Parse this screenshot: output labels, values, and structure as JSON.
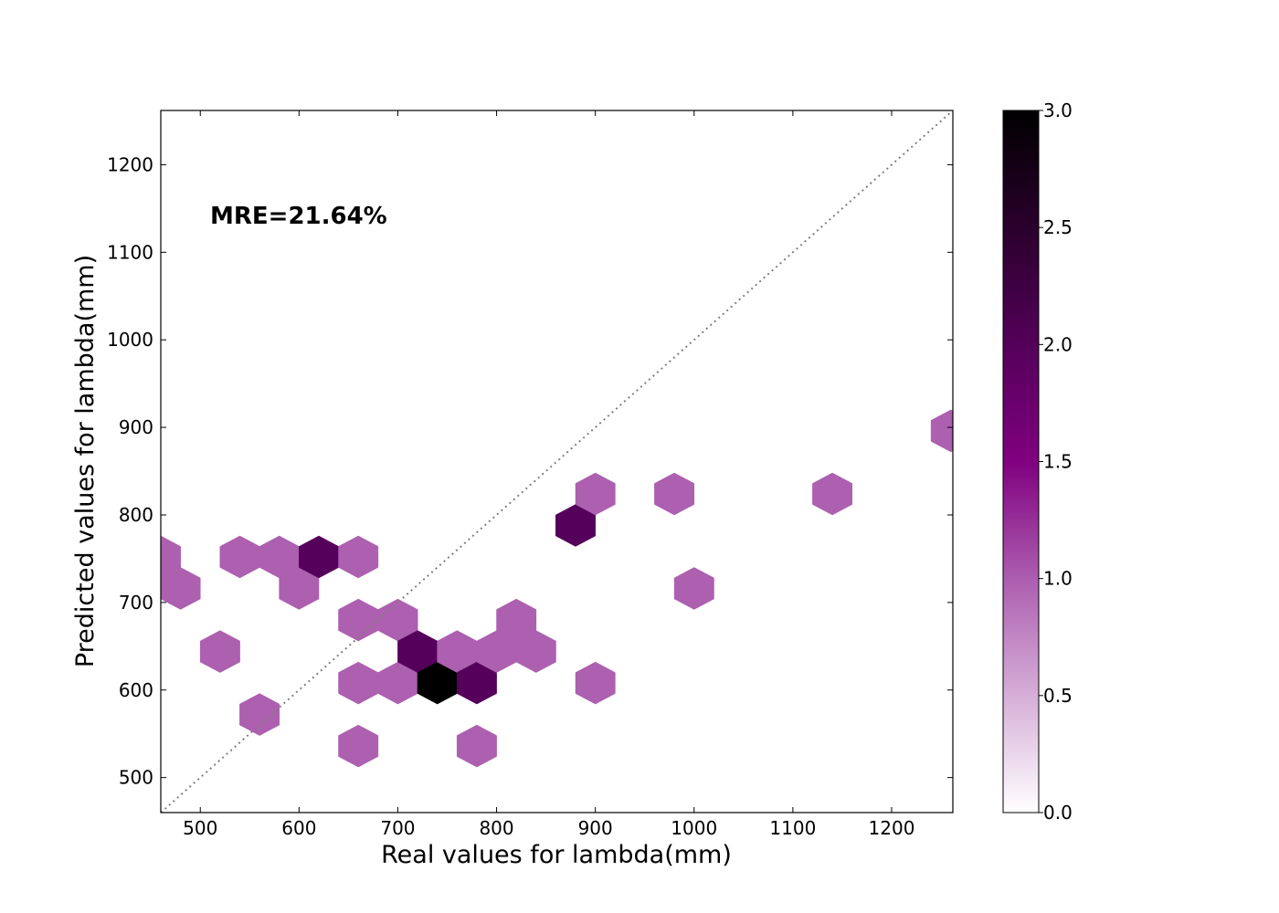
{
  "chart_data": {
    "type": "hexbin",
    "xlabel": "Real values for lambda(mm)",
    "ylabel": "Predicted values for lambda(mm)",
    "annotation": "MRE=21.64%",
    "xlim": [
      460,
      1262
    ],
    "ylim": [
      460,
      1262
    ],
    "xticks": [
      500,
      600,
      700,
      800,
      900,
      1000,
      1100,
      1200
    ],
    "yticks": [
      500,
      600,
      700,
      800,
      900,
      1000,
      1100,
      1200
    ],
    "reference_line": "y=x, dotted gray",
    "colorbar": {
      "range": [
        0,
        3
      ],
      "ticks": [
        "0.0",
        "0.5",
        "1.0",
        "1.5",
        "2.0",
        "2.5",
        "3.0"
      ],
      "colormap": "white-to-purple-to-black"
    },
    "bins": [
      {
        "x": 460,
        "y": 752,
        "count": 1
      },
      {
        "x": 480,
        "y": 716,
        "count": 1
      },
      {
        "x": 520,
        "y": 644,
        "count": 1
      },
      {
        "x": 540,
        "y": 752,
        "count": 1
      },
      {
        "x": 560,
        "y": 572,
        "count": 1
      },
      {
        "x": 580,
        "y": 752,
        "count": 1
      },
      {
        "x": 600,
        "y": 716,
        "count": 1
      },
      {
        "x": 620,
        "y": 752,
        "count": 2
      },
      {
        "x": 660,
        "y": 752,
        "count": 1
      },
      {
        "x": 660,
        "y": 680,
        "count": 1
      },
      {
        "x": 660,
        "y": 608,
        "count": 1
      },
      {
        "x": 660,
        "y": 536,
        "count": 1
      },
      {
        "x": 700,
        "y": 680,
        "count": 1
      },
      {
        "x": 700,
        "y": 608,
        "count": 1
      },
      {
        "x": 720,
        "y": 644,
        "count": 2
      },
      {
        "x": 740,
        "y": 608,
        "count": 3
      },
      {
        "x": 760,
        "y": 644,
        "count": 1
      },
      {
        "x": 780,
        "y": 608,
        "count": 2
      },
      {
        "x": 780,
        "y": 536,
        "count": 1
      },
      {
        "x": 800,
        "y": 644,
        "count": 1
      },
      {
        "x": 820,
        "y": 680,
        "count": 1
      },
      {
        "x": 840,
        "y": 644,
        "count": 1
      },
      {
        "x": 880,
        "y": 788,
        "count": 2
      },
      {
        "x": 900,
        "y": 824,
        "count": 1
      },
      {
        "x": 900,
        "y": 608,
        "count": 1
      },
      {
        "x": 980,
        "y": 824,
        "count": 1
      },
      {
        "x": 1000,
        "y": 716,
        "count": 1
      },
      {
        "x": 1140,
        "y": 824,
        "count": 1
      },
      {
        "x": 1260,
        "y": 896,
        "count": 1
      }
    ]
  }
}
